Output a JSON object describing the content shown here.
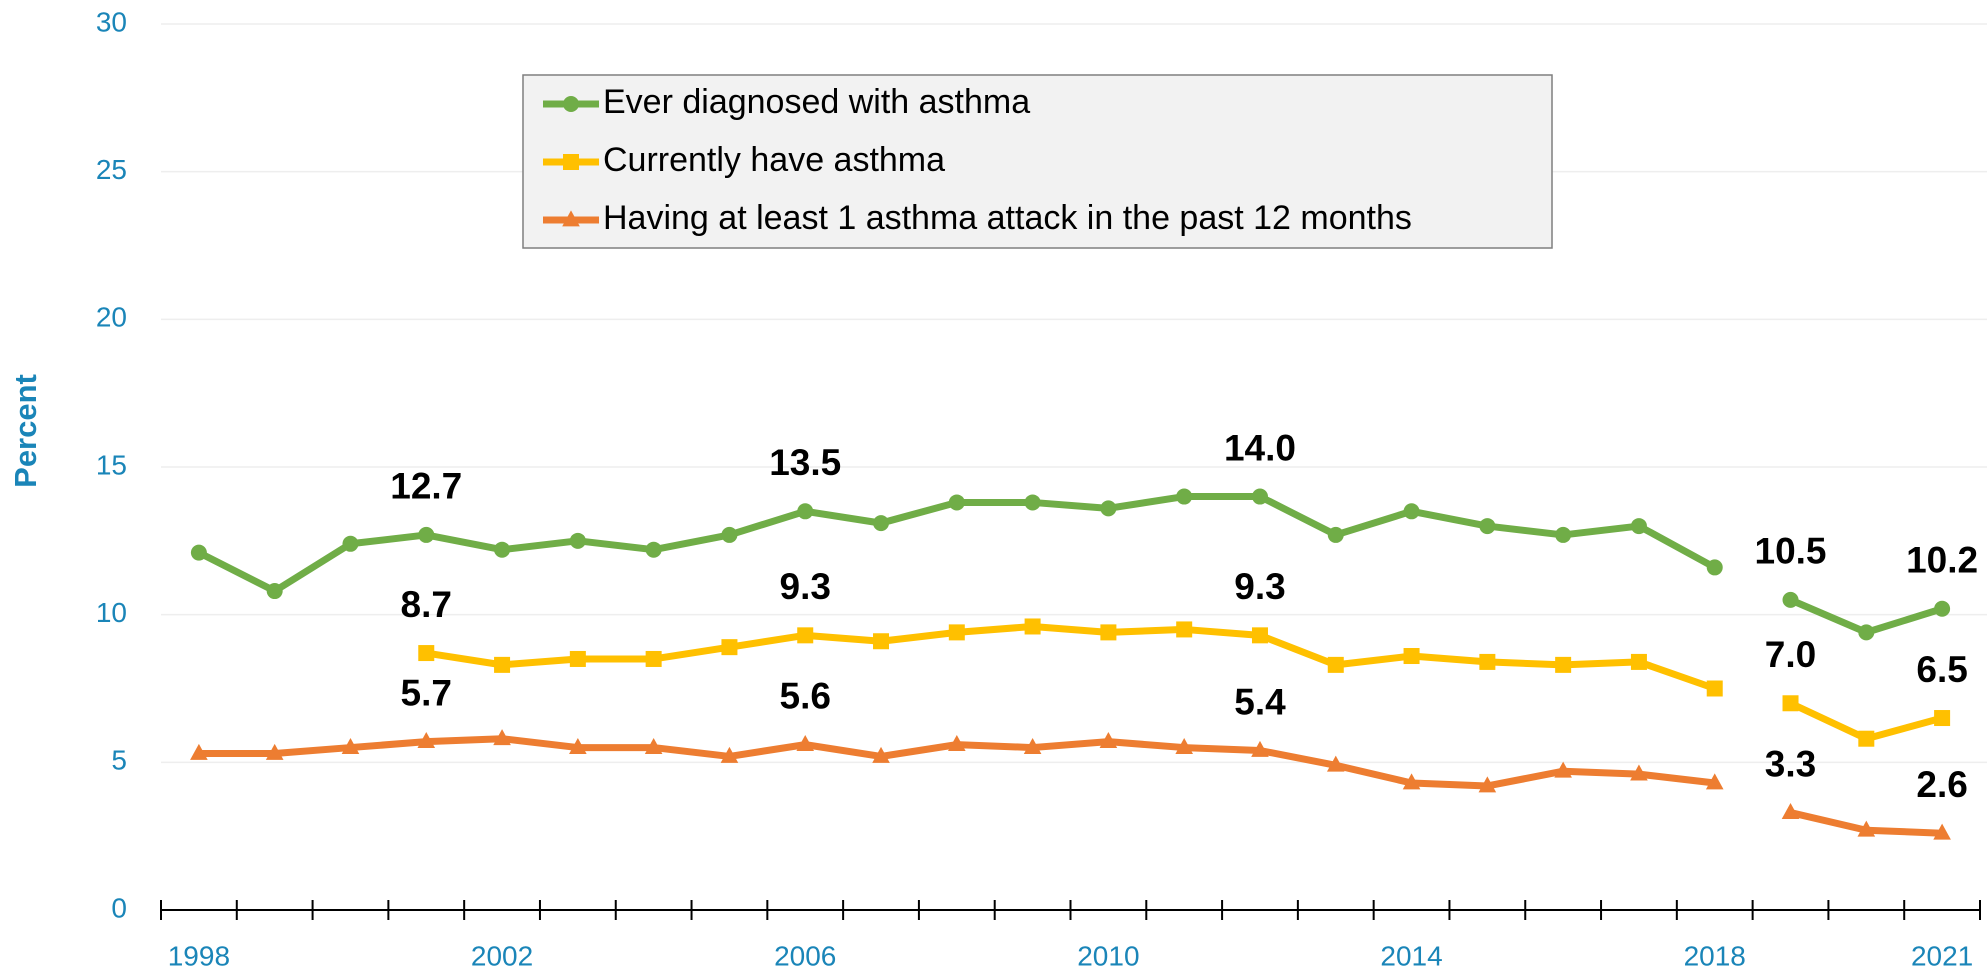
{
  "chart_data": {
    "type": "line",
    "y_label": "Percent",
    "categories": [
      "1998",
      null,
      null,
      null,
      "2002",
      null,
      null,
      null,
      "2006",
      null,
      null,
      null,
      "2010",
      null,
      null,
      null,
      "2014",
      null,
      null,
      null,
      "2018",
      null,
      null,
      "2021"
    ],
    "ylim": [
      0,
      30
    ],
    "yticks": [
      0,
      5,
      10,
      15,
      20,
      25,
      30
    ],
    "grid": true,
    "legend": "top",
    "gap_before": 21,
    "series": [
      {
        "name": "Ever diagnosed with asthma",
        "color": "#70ad47",
        "marker": "circle",
        "values": [
          12.1,
          10.8,
          12.4,
          12.7,
          12.2,
          12.5,
          12.2,
          12.7,
          13.5,
          13.1,
          13.8,
          13.8,
          13.6,
          14.0,
          14.0,
          12.7,
          13.5,
          13.0,
          12.7,
          13.0,
          11.6,
          10.5,
          9.4,
          10.2
        ],
        "value_labels": [
          null,
          null,
          null,
          "12.7",
          null,
          null,
          null,
          null,
          "13.5",
          null,
          null,
          null,
          null,
          null,
          "14.0",
          null,
          null,
          null,
          null,
          null,
          null,
          "10.5",
          null,
          "10.2"
        ]
      },
      {
        "name": "Currently have asthma",
        "color": "#ffc000",
        "marker": "square",
        "values": [
          null,
          null,
          null,
          8.7,
          8.3,
          8.5,
          8.5,
          8.9,
          9.3,
          9.1,
          9.4,
          9.6,
          9.4,
          9.5,
          9.3,
          8.3,
          8.6,
          8.4,
          8.3,
          8.4,
          7.5,
          7.0,
          5.8,
          6.5
        ],
        "value_labels": [
          null,
          null,
          null,
          "8.7",
          null,
          null,
          null,
          null,
          "9.3",
          null,
          null,
          null,
          null,
          null,
          "9.3",
          null,
          null,
          null,
          null,
          null,
          null,
          "7.0",
          null,
          "6.5"
        ]
      },
      {
        "name": "Having at least 1 asthma attack in the past 12 months",
        "color": "#ed7d31",
        "marker": "triangle",
        "values": [
          5.3,
          5.3,
          5.5,
          5.7,
          5.8,
          5.5,
          5.5,
          5.2,
          5.6,
          5.2,
          5.6,
          5.5,
          5.7,
          5.5,
          5.4,
          4.9,
          4.3,
          4.2,
          4.7,
          4.6,
          4.3,
          3.3,
          2.7,
          2.6
        ],
        "value_labels": [
          null,
          null,
          null,
          "5.7",
          null,
          null,
          null,
          null,
          "5.6",
          null,
          null,
          null,
          null,
          null,
          "5.4",
          null,
          null,
          null,
          null,
          null,
          null,
          "3.3",
          null,
          "2.6"
        ]
      }
    ]
  }
}
